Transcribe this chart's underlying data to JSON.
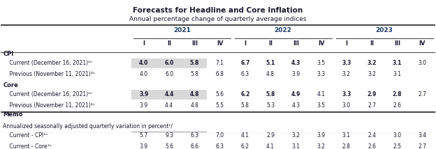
{
  "title": "Forecasts for Headline and Core Inflation",
  "subtitle": "Annual percentage change of quarterly average indices",
  "years": [
    "2021",
    "2022",
    "2023"
  ],
  "quarters": [
    "I",
    "II",
    "III",
    "IV",
    "I",
    "II",
    "III",
    "IV",
    "I",
    "II",
    "III",
    "IV"
  ],
  "sections": [
    {
      "label": "CPI",
      "bold": true,
      "rows": [
        {
          "label": "    Current (December 16, 2021)¹ⁿ",
          "values": [
            "4.0",
            "6.0",
            "5.8",
            "7.1",
            "6.7",
            "5.1",
            "4.3",
            "3.5",
            "3.3",
            "3.2",
            "3.1",
            "3.0"
          ],
          "highlight": [
            0,
            1,
            2
          ],
          "bold_cols": [
            0,
            1,
            2,
            4,
            5,
            6,
            8,
            9,
            10
          ]
        },
        {
          "label": "    Previous (November 11, 2021)²ⁿ",
          "values": [
            "4.0",
            "6.0",
            "5.8",
            "6.8",
            "6.3",
            "4.8",
            "3.9",
            "3.3",
            "3.2",
            "3.2",
            "3.1",
            ""
          ],
          "highlight": [],
          "bold_cols": []
        }
      ]
    },
    {
      "label": "Core",
      "bold": true,
      "rows": [
        {
          "label": "    Current (December 16, 2021)¹ⁿ",
          "values": [
            "3.9",
            "4.4",
            "4.8",
            "5.6",
            "6.2",
            "5.8",
            "4.9",
            "4.1",
            "3.3",
            "2.9",
            "2.8",
            "2.7"
          ],
          "highlight": [
            0,
            1,
            2
          ],
          "bold_cols": [
            0,
            1,
            2,
            4,
            5,
            6,
            8,
            9,
            10
          ]
        },
        {
          "label": "    Previous (November 11, 2021)²ⁿ",
          "values": [
            "3.9",
            "4.4",
            "4.8",
            "5.5",
            "5.8",
            "5.3",
            "4.3",
            "3.5",
            "3.0",
            "2.7",
            "2.6",
            ""
          ],
          "highlight": [],
          "bold_cols": []
        }
      ]
    }
  ],
  "memo_label": "Memo",
  "memo_sub_label": "Annualized seasonally adjusted quarterly variation in percent¹/",
  "memo_rows": [
    {
      "label": "    Current - CPI¹ⁿ",
      "values": [
        "5.7",
        "9.3",
        "6.3",
        "7.0",
        "4.1",
        "2.9",
        "3.2",
        "3.9",
        "3.1",
        "2.4",
        "3.0",
        "3.4"
      ],
      "highlight": [
        0,
        1,
        2
      ]
    },
    {
      "label": "    Current - Core¹ⁿ",
      "values": [
        "3.9",
        "5.6",
        "6.6",
        "6.3",
        "6.2",
        "4.1",
        "3.1",
        "3.2",
        "2.8",
        "2.6",
        "2.5",
        "2.7"
      ],
      "highlight": [
        0,
        1,
        2
      ]
    }
  ],
  "highlight_color": "#d9d9d9",
  "text_color": "#1a1a2e",
  "header_bg": "#ffffff",
  "bg_color": "#ffffff",
  "border_color": "#4a4a4a",
  "section_label_color": "#2c2c5c",
  "year_label_color": "#1a3a6b"
}
